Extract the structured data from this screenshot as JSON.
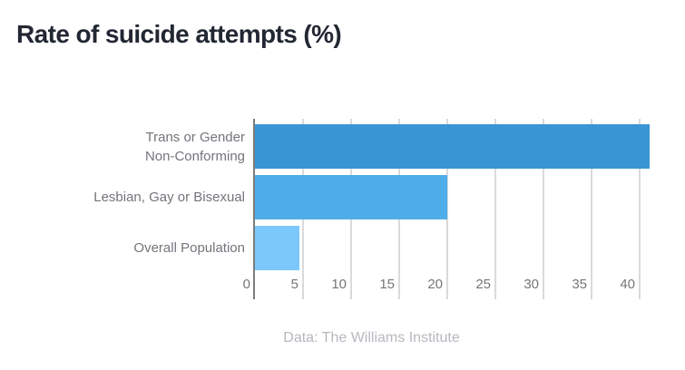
{
  "title": "Rate of suicide attempts (%)",
  "footer": "Data: The Williams Institute",
  "chart_data": {
    "type": "bar",
    "orientation": "horizontal",
    "title": "Rate of suicide attempts (%)",
    "categories": [
      "Trans or Gender Non-Conforming",
      "Lesbian, Gay or Bisexual",
      "Overall Population"
    ],
    "category_label_lines": [
      [
        "Trans or Gender",
        "Non-Conforming"
      ],
      [
        "Lesbian, Gay or Bisexual"
      ],
      [
        "Overall Population"
      ]
    ],
    "values": [
      41,
      20,
      4.6
    ],
    "bar_colors": [
      "#3a96d2",
      "#4fadea",
      "#7cc8fa"
    ],
    "xlabel": "",
    "ylabel": "",
    "xlim": [
      0,
      41
    ],
    "x_ticks": [
      0,
      5,
      10,
      15,
      20,
      25,
      30,
      35,
      40
    ],
    "grid": true,
    "gridline_color": "#dadada",
    "axis_color": "#7c7c7c",
    "legend": "none",
    "source_note": "Data: The Williams Institute"
  }
}
